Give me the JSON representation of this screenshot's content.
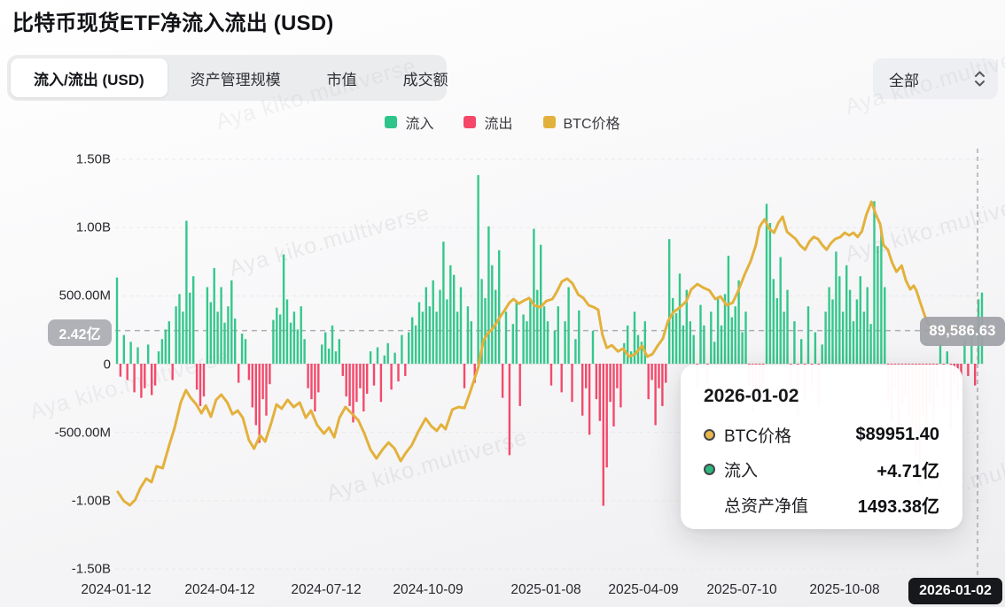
{
  "header": {
    "title": "比特币现货ETF净流入流出 (USD)"
  },
  "tabs": {
    "items": [
      {
        "label": "流入/流出 (USD)",
        "active": true
      },
      {
        "label": "资产管理规模",
        "active": false
      },
      {
        "label": "市值",
        "active": false
      },
      {
        "label": "成交额",
        "active": false
      }
    ]
  },
  "filter": {
    "value": "全部"
  },
  "legend": [
    {
      "label": "流入",
      "color": "#2fc489"
    },
    {
      "label": "流出",
      "color": "#f4476a"
    },
    {
      "label": "BTC价格",
      "color": "#e2b13c"
    }
  ],
  "watermark": {
    "text": "Aya kiko.multiverse"
  },
  "badges": {
    "avg_flow": "2.42亿",
    "current_price": "89,586.63",
    "hover_date": "2026-01-02"
  },
  "tooltip": {
    "title": "2026-01-02",
    "rows": [
      {
        "marker": "#e8b64a",
        "label": "BTC价格",
        "value": "$89951.40"
      },
      {
        "marker": "#2db77e",
        "label": "流入",
        "value": "+4.71亿"
      },
      {
        "marker": null,
        "label": "总资产净值",
        "value": "1493.38亿"
      }
    ]
  },
  "chart_data": {
    "type": "combo-bar-line",
    "title": "比特币现货ETF净流入流出 (USD)",
    "series_names": [
      "流入",
      "流出",
      "BTC价格"
    ],
    "y_axis": {
      "ticks": [
        "1.50B",
        "1.00B",
        "500.00M",
        "0",
        "-500.00M",
        "-1.00B",
        "-1.50B"
      ],
      "min": -1500000000,
      "max": 1500000000,
      "grid": true
    },
    "x_axis": {
      "ticks": [
        "2024-01-12",
        "2024-04-12",
        "2024-07-12",
        "2024-10-09",
        "2025-01-08",
        "2025-04-09",
        "2025-07-10",
        "2025-10-08",
        "2026-01-02"
      ]
    },
    "price_axis": {
      "min": 16000,
      "max": 142000,
      "current": 89586.63
    },
    "avg_flow_line_usd": 242000000,
    "bars_unit": "USD millions, positive=inflow(green) negative=outflow(red)",
    "bars": [
      630,
      -95,
      210,
      -120,
      160,
      -210,
      120,
      -250,
      -180,
      140,
      -230,
      -160,
      90,
      180,
      250,
      310,
      -120,
      420,
      510,
      380,
      1046,
      520,
      640,
      -190,
      -310,
      -240,
      560,
      450,
      700,
      380,
      560,
      300,
      420,
      610,
      330,
      -140,
      220,
      180,
      -120,
      -320,
      -450,
      -580,
      -260,
      -380,
      -150,
      320,
      410,
      360,
      800,
      470,
      300,
      380,
      250,
      420,
      180,
      -180,
      -260,
      -350,
      -210,
      140,
      230,
      110,
      280,
      90,
      180,
      -90,
      -240,
      -310,
      -430,
      -280,
      -180,
      -350,
      -220,
      90,
      -160,
      120,
      -280,
      60,
      150,
      -190,
      80,
      -130,
      210,
      -90,
      230,
      340,
      280,
      450,
      380,
      560,
      420,
      610,
      380,
      540,
      893,
      470,
      720,
      650,
      380,
      560,
      -180,
      420,
      310,
      -140,
      1380,
      620,
      480,
      1005,
      720,
      540,
      830,
      -250,
      380,
      -670,
      290,
      450,
      -310,
      360,
      310,
      480,
      987,
      540,
      870,
      420,
      310,
      -160,
      240,
      420,
      -210,
      310,
      560,
      -280,
      180,
      390,
      -380,
      -180,
      -520,
      240,
      -260,
      -420,
      -1040,
      -760,
      -280,
      -460,
      -180,
      -320,
      150,
      280,
      90,
      380,
      210,
      160,
      310,
      -260,
      -120,
      -450,
      -180,
      -310,
      -140,
      912,
      480,
      370,
      660,
      280,
      540,
      310,
      210,
      -180,
      430,
      280,
      -140,
      380,
      160,
      490,
      280,
      510,
      790,
      340,
      420,
      610,
      230,
      380,
      -160,
      -350,
      -220,
      -290,
      -140,
      1170,
      1030,
      620,
      480,
      780,
      380,
      540,
      -210,
      310,
      -380,
      180,
      -260,
      420,
      -160,
      230,
      -310,
      140,
      380,
      560,
      470,
      820,
      640,
      380,
      720,
      540,
      310,
      470,
      640,
      380,
      560,
      290,
      1190,
      860,
      980,
      560,
      -280,
      -420,
      -180,
      -560,
      -310,
      -240,
      -380,
      -460,
      -680,
      -890,
      -380,
      -560,
      -290,
      -430,
      -180,
      140,
      -310,
      90,
      -480,
      -150,
      -260,
      -120,
      180,
      -90,
      240,
      -160,
      471,
      520
    ],
    "price_line": [
      [
        0.003,
        39700
      ],
      [
        0.01,
        36900
      ],
      [
        0.017,
        35600
      ],
      [
        0.023,
        37200
      ],
      [
        0.029,
        40800
      ],
      [
        0.036,
        43800
      ],
      [
        0.042,
        42700
      ],
      [
        0.048,
        47600
      ],
      [
        0.055,
        47000
      ],
      [
        0.063,
        54400
      ],
      [
        0.069,
        59500
      ],
      [
        0.076,
        67200
      ],
      [
        0.082,
        71000
      ],
      [
        0.087,
        68800
      ],
      [
        0.094,
        66600
      ],
      [
        0.1,
        63900
      ],
      [
        0.105,
        66300
      ],
      [
        0.111,
        62800
      ],
      [
        0.117,
        68000
      ],
      [
        0.123,
        69600
      ],
      [
        0.13,
        67200
      ],
      [
        0.136,
        63600
      ],
      [
        0.142,
        64700
      ],
      [
        0.148,
        62500
      ],
      [
        0.155,
        55700
      ],
      [
        0.161,
        53000
      ],
      [
        0.168,
        57100
      ],
      [
        0.174,
        55200
      ],
      [
        0.181,
        60900
      ],
      [
        0.187,
        66600
      ],
      [
        0.193,
        65300
      ],
      [
        0.2,
        68000
      ],
      [
        0.207,
        65800
      ],
      [
        0.214,
        67200
      ],
      [
        0.221,
        62500
      ],
      [
        0.227,
        64700
      ],
      [
        0.234,
        60300
      ],
      [
        0.242,
        57600
      ],
      [
        0.248,
        59500
      ],
      [
        0.254,
        56500
      ],
      [
        0.26,
        62500
      ],
      [
        0.267,
        65800
      ],
      [
        0.274,
        63900
      ],
      [
        0.282,
        61700
      ],
      [
        0.289,
        57600
      ],
      [
        0.296,
        52700
      ],
      [
        0.303,
        50000
      ],
      [
        0.31,
        52700
      ],
      [
        0.317,
        54900
      ],
      [
        0.324,
        53000
      ],
      [
        0.331,
        49200
      ],
      [
        0.337,
        51700
      ],
      [
        0.344,
        54100
      ],
      [
        0.351,
        58000
      ],
      [
        0.36,
        62300
      ],
      [
        0.367,
        59800
      ],
      [
        0.373,
        58500
      ],
      [
        0.378,
        60400
      ],
      [
        0.383,
        59000
      ],
      [
        0.391,
        65000
      ],
      [
        0.398,
        65800
      ],
      [
        0.405,
        65500
      ],
      [
        0.411,
        69900
      ],
      [
        0.416,
        74000
      ],
      [
        0.421,
        78000
      ],
      [
        0.427,
        86200
      ],
      [
        0.432,
        88400
      ],
      [
        0.437,
        89700
      ],
      [
        0.442,
        91600
      ],
      [
        0.447,
        93800
      ],
      [
        0.452,
        95700
      ],
      [
        0.457,
        97900
      ],
      [
        0.462,
        99000
      ],
      [
        0.468,
        97600
      ],
      [
        0.473,
        98400
      ],
      [
        0.48,
        99300
      ],
      [
        0.486,
        97100
      ],
      [
        0.493,
        96500
      ],
      [
        0.5,
        98400
      ],
      [
        0.507,
        99000
      ],
      [
        0.512,
        101200
      ],
      [
        0.518,
        104400
      ],
      [
        0.524,
        105300
      ],
      [
        0.53,
        103900
      ],
      [
        0.537,
        100400
      ],
      [
        0.543,
        99300
      ],
      [
        0.549,
        97100
      ],
      [
        0.555,
        96500
      ],
      [
        0.56,
        95700
      ],
      [
        0.565,
        88100
      ],
      [
        0.57,
        84000
      ],
      [
        0.576,
        84800
      ],
      [
        0.583,
        82900
      ],
      [
        0.589,
        83800
      ],
      [
        0.596,
        81300
      ],
      [
        0.603,
        82100
      ],
      [
        0.611,
        84600
      ],
      [
        0.617,
        81300
      ],
      [
        0.623,
        82100
      ],
      [
        0.629,
        84600
      ],
      [
        0.635,
        86800
      ],
      [
        0.641,
        92200
      ],
      [
        0.647,
        94900
      ],
      [
        0.655,
        96500
      ],
      [
        0.662,
        98200
      ],
      [
        0.668,
        102000
      ],
      [
        0.675,
        103600
      ],
      [
        0.682,
        102500
      ],
      [
        0.689,
        101700
      ],
      [
        0.696,
        99000
      ],
      [
        0.702,
        99800
      ],
      [
        0.709,
        97100
      ],
      [
        0.716,
        97900
      ],
      [
        0.722,
        101200
      ],
      [
        0.73,
        106600
      ],
      [
        0.737,
        110700
      ],
      [
        0.743,
        115600
      ],
      [
        0.747,
        121000
      ],
      [
        0.75,
        122400
      ],
      [
        0.753,
        123500
      ],
      [
        0.758,
        120800
      ],
      [
        0.764,
        119400
      ],
      [
        0.769,
        122400
      ],
      [
        0.774,
        124300
      ],
      [
        0.779,
        119700
      ],
      [
        0.784,
        118600
      ],
      [
        0.789,
        117500
      ],
      [
        0.794,
        115600
      ],
      [
        0.8,
        114200
      ],
      [
        0.805,
        116700
      ],
      [
        0.81,
        118100
      ],
      [
        0.815,
        117500
      ],
      [
        0.82,
        115600
      ],
      [
        0.825,
        114200
      ],
      [
        0.83,
        116200
      ],
      [
        0.835,
        117500
      ],
      [
        0.841,
        118100
      ],
      [
        0.846,
        119400
      ],
      [
        0.851,
        118600
      ],
      [
        0.856,
        119400
      ],
      [
        0.861,
        118100
      ],
      [
        0.866,
        119900
      ],
      [
        0.871,
        124900
      ],
      [
        0.877,
        128900
      ],
      [
        0.882,
        125100
      ],
      [
        0.887,
        122100
      ],
      [
        0.891,
        115600
      ],
      [
        0.896,
        114200
      ],
      [
        0.901,
        110200
      ],
      [
        0.906,
        107400
      ],
      [
        0.912,
        109300
      ],
      [
        0.917,
        104700
      ],
      [
        0.922,
        102000
      ],
      [
        0.926,
        103100
      ],
      [
        0.929,
        101700
      ],
      [
        0.933,
        98400
      ],
      [
        0.938,
        94500
      ],
      [
        0.942,
        91500
      ],
      [
        0.956,
        89500
      ],
      [
        0.971,
        90500
      ],
      [
        0.987,
        89200
      ],
      [
        1.0,
        89951
      ]
    ]
  }
}
